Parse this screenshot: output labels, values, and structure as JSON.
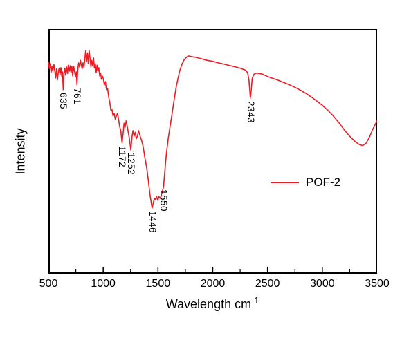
{
  "figure": {
    "background": "#ffffff",
    "axis_color": "#000000"
  },
  "chart_data": {
    "type": "line",
    "title": "",
    "xlabel": "Wavelength cm",
    "xlabel_superscript": "-1",
    "ylabel": "Intensity",
    "xlim": [
      500,
      3500
    ],
    "ylim": [
      0,
      1
    ],
    "grid": false,
    "x_ticks": [
      500,
      1000,
      1500,
      2000,
      2500,
      3000,
      3500
    ],
    "x_minor_ticks": [
      750,
      1250,
      1750,
      2250,
      2750,
      3250
    ],
    "legend": {
      "label": "POF-2",
      "position": "lower-right",
      "line_color": "#ed1c24"
    },
    "peak_labels": [
      {
        "text": "635",
        "x": 635,
        "anchor": 0.752
      },
      {
        "text": "761",
        "x": 761,
        "anchor": 0.772
      },
      {
        "text": "1172",
        "x": 1172,
        "anchor": 0.535
      },
      {
        "text": "1252",
        "x": 1252,
        "anchor": 0.505
      },
      {
        "text": "1446",
        "x": 1446,
        "anchor": 0.268
      },
      {
        "text": "1550",
        "x": 1550,
        "anchor": 0.355
      },
      {
        "text": "2343",
        "x": 2343,
        "anchor": 0.718
      }
    ],
    "series": [
      {
        "name": "POF-2",
        "color": "#ed1c24",
        "y_units": "normalized intensity (0-1, arbitrary units)",
        "points": [
          [
            500,
            0.865
          ],
          [
            508,
            0.838
          ],
          [
            516,
            0.858
          ],
          [
            524,
            0.822
          ],
          [
            532,
            0.848
          ],
          [
            540,
            0.83
          ],
          [
            550,
            0.855
          ],
          [
            558,
            0.828
          ],
          [
            566,
            0.8
          ],
          [
            574,
            0.838
          ],
          [
            582,
            0.792
          ],
          [
            590,
            0.825
          ],
          [
            598,
            0.84
          ],
          [
            606,
            0.815
          ],
          [
            614,
            0.842
          ],
          [
            622,
            0.805
          ],
          [
            628,
            0.825
          ],
          [
            635,
            0.752
          ],
          [
            642,
            0.818
          ],
          [
            650,
            0.84
          ],
          [
            658,
            0.812
          ],
          [
            666,
            0.845
          ],
          [
            674,
            0.818
          ],
          [
            682,
            0.852
          ],
          [
            690,
            0.828
          ],
          [
            698,
            0.85
          ],
          [
            706,
            0.822
          ],
          [
            714,
            0.848
          ],
          [
            722,
            0.808
          ],
          [
            730,
            0.848
          ],
          [
            738,
            0.828
          ],
          [
            746,
            0.805
          ],
          [
            754,
            0.825
          ],
          [
            761,
            0.772
          ],
          [
            768,
            0.835
          ],
          [
            776,
            0.862
          ],
          [
            784,
            0.845
          ],
          [
            792,
            0.872
          ],
          [
            800,
            0.852
          ],
          [
            808,
            0.838
          ],
          [
            816,
            0.862
          ],
          [
            824,
            0.842
          ],
          [
            832,
            0.878
          ],
          [
            840,
            0.912
          ],
          [
            848,
            0.868
          ],
          [
            856,
            0.902
          ],
          [
            864,
            0.858
          ],
          [
            872,
            0.912
          ],
          [
            880,
            0.878
          ],
          [
            888,
            0.845
          ],
          [
            896,
            0.872
          ],
          [
            904,
            0.848
          ],
          [
            912,
            0.882
          ],
          [
            920,
            0.84
          ],
          [
            928,
            0.858
          ],
          [
            936,
            0.822
          ],
          [
            944,
            0.852
          ],
          [
            952,
            0.828
          ],
          [
            960,
            0.842
          ],
          [
            968,
            0.808
          ],
          [
            976,
            0.82
          ],
          [
            984,
            0.795
          ],
          [
            992,
            0.808
          ],
          [
            1000,
            0.798
          ],
          [
            1010,
            0.772
          ],
          [
            1020,
            0.785
          ],
          [
            1030,
            0.752
          ],
          [
            1040,
            0.758
          ],
          [
            1050,
            0.722
          ],
          [
            1060,
            0.7
          ],
          [
            1070,
            0.668
          ],
          [
            1080,
            0.672
          ],
          [
            1090,
            0.645
          ],
          [
            1100,
            0.655
          ],
          [
            1110,
            0.632
          ],
          [
            1120,
            0.645
          ],
          [
            1130,
            0.655
          ],
          [
            1140,
            0.632
          ],
          [
            1150,
            0.602
          ],
          [
            1160,
            0.585
          ],
          [
            1172,
            0.535
          ],
          [
            1180,
            0.568
          ],
          [
            1190,
            0.615
          ],
          [
            1200,
            0.598
          ],
          [
            1210,
            0.625
          ],
          [
            1220,
            0.6
          ],
          [
            1230,
            0.575
          ],
          [
            1240,
            0.548
          ],
          [
            1252,
            0.505
          ],
          [
            1262,
            0.558
          ],
          [
            1272,
            0.585
          ],
          [
            1282,
            0.562
          ],
          [
            1292,
            0.578
          ],
          [
            1302,
            0.552
          ],
          [
            1312,
            0.562
          ],
          [
            1322,
            0.585
          ],
          [
            1335,
            0.565
          ],
          [
            1350,
            0.545
          ],
          [
            1365,
            0.518
          ],
          [
            1380,
            0.475
          ],
          [
            1395,
            0.438
          ],
          [
            1410,
            0.388
          ],
          [
            1425,
            0.328
          ],
          [
            1446,
            0.268
          ],
          [
            1458,
            0.292
          ],
          [
            1468,
            0.308
          ],
          [
            1478,
            0.302
          ],
          [
            1488,
            0.315
          ],
          [
            1498,
            0.3
          ],
          [
            1508,
            0.315
          ],
          [
            1520,
            0.308
          ],
          [
            1535,
            0.328
          ],
          [
            1550,
            0.355
          ],
          [
            1562,
            0.415
          ],
          [
            1576,
            0.488
          ],
          [
            1592,
            0.548
          ],
          [
            1610,
            0.602
          ],
          [
            1628,
            0.652
          ],
          [
            1646,
            0.708
          ],
          [
            1664,
            0.758
          ],
          [
            1682,
            0.798
          ],
          [
            1700,
            0.832
          ],
          [
            1720,
            0.858
          ],
          [
            1740,
            0.875
          ],
          [
            1760,
            0.885
          ],
          [
            1780,
            0.89
          ],
          [
            1800,
            0.888
          ],
          [
            1825,
            0.886
          ],
          [
            1850,
            0.884
          ],
          [
            1900,
            0.878
          ],
          [
            1950,
            0.872
          ],
          [
            2000,
            0.868
          ],
          [
            2050,
            0.862
          ],
          [
            2100,
            0.857
          ],
          [
            2150,
            0.851
          ],
          [
            2200,
            0.846
          ],
          [
            2250,
            0.84
          ],
          [
            2300,
            0.832
          ],
          [
            2318,
            0.822
          ],
          [
            2330,
            0.792
          ],
          [
            2343,
            0.718
          ],
          [
            2352,
            0.752
          ],
          [
            2360,
            0.798
          ],
          [
            2375,
            0.815
          ],
          [
            2400,
            0.82
          ],
          [
            2450,
            0.816
          ],
          [
            2500,
            0.806
          ],
          [
            2550,
            0.798
          ],
          [
            2600,
            0.79
          ],
          [
            2650,
            0.781
          ],
          [
            2700,
            0.772
          ],
          [
            2750,
            0.762
          ],
          [
            2800,
            0.75
          ],
          [
            2850,
            0.737
          ],
          [
            2900,
            0.722
          ],
          [
            2950,
            0.706
          ],
          [
            3000,
            0.688
          ],
          [
            3050,
            0.668
          ],
          [
            3100,
            0.645
          ],
          [
            3150,
            0.618
          ],
          [
            3200,
            0.588
          ],
          [
            3250,
            0.562
          ],
          [
            3300,
            0.54
          ],
          [
            3340,
            0.527
          ],
          [
            3370,
            0.524
          ],
          [
            3400,
            0.534
          ],
          [
            3430,
            0.558
          ],
          [
            3460,
            0.59
          ],
          [
            3485,
            0.612
          ],
          [
            3500,
            0.625
          ]
        ]
      }
    ]
  }
}
